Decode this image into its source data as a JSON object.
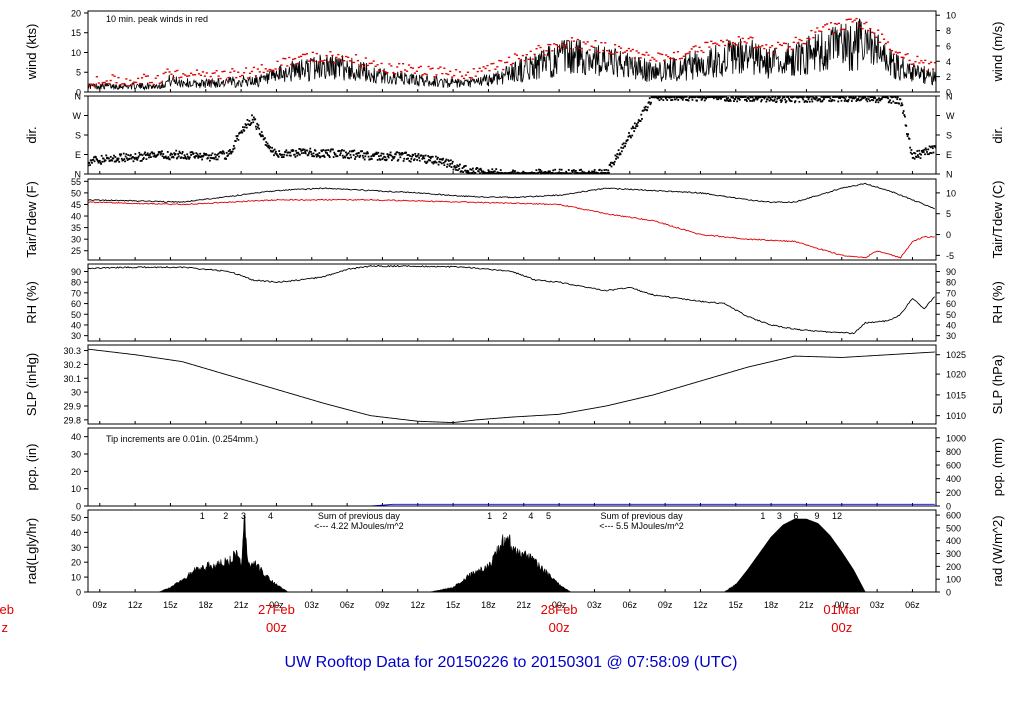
{
  "title": "UW Rooftop Data for 20150226  to  20150301 @ 07:58:09  (UTC)",
  "colors": {
    "axis": "#000000",
    "peak": "#e00000",
    "dew": "#e00000",
    "precip": "#0000ff",
    "annot_blue": "#0000c8",
    "annot_purple": "#9900cc",
    "title": "#0000c8"
  },
  "chart_data": {
    "type": "line",
    "time_axis": {
      "start": "2015-02-26T08:00Z",
      "end": "2015-03-01T08:00Z",
      "hour_ticks": [
        "09z",
        "12z",
        "15z",
        "18z",
        "21z",
        "00z",
        "03z",
        "06z",
        "09z",
        "12z",
        "15z",
        "18z",
        "21z",
        "00z",
        "03z",
        "06z",
        "09z",
        "12z",
        "15z",
        "18z",
        "21z",
        "00z",
        "03z",
        "06z"
      ],
      "day_labels": [
        {
          "date": "27Feb",
          "hour": "00z",
          "time": "2015-02-27T00:00Z"
        },
        {
          "date": "28Feb",
          "hour": "00z",
          "time": "2015-02-28T00:00Z"
        },
        {
          "date": "01Mar",
          "hour": "00z",
          "time": "2015-03-01T00:00Z"
        }
      ],
      "left_cut_date": "eb",
      "left_cut_hour": "z"
    },
    "panels": [
      {
        "id": "wind",
        "ylabel": "wind (kts)",
        "ylabel_right": "wind (m/s)",
        "ylim": [
          0,
          20.5
        ],
        "yticks": [
          0,
          5,
          10,
          15,
          20
        ],
        "right_ticks": [
          {
            "v": 0,
            "label": "0"
          },
          {
            "v": 3.89,
            "label": "2"
          },
          {
            "v": 7.78,
            "label": "4"
          },
          {
            "v": 11.66,
            "label": "6"
          },
          {
            "v": 15.55,
            "label": "8"
          },
          {
            "v": 19.44,
            "label": "10"
          }
        ],
        "annotation": "10 min. peak winds in red",
        "series": [
          {
            "name": "wind",
            "color": "#000000",
            "hours": [
              0,
              3,
              6,
              7,
              9,
              12,
              15,
              17,
              20,
              22,
              24,
              26,
              28,
              30,
              32,
              34,
              36,
              38,
              40,
              42,
              44,
              46,
              48,
              50,
              52,
              54,
              56,
              58,
              60,
              62,
              64,
              66,
              67,
              68,
              70,
              72
            ],
            "values": [
              1.5,
              1.5,
              1.5,
              3,
              2,
              2.5,
              3,
              5,
              6.5,
              6,
              4.5,
              3.5,
              3,
              2.5,
              2,
              3,
              5,
              6.5,
              8.5,
              9,
              7.5,
              6.5,
              5,
              6,
              7,
              8.5,
              9,
              7,
              8.5,
              10,
              11.5,
              12,
              10,
              7.5,
              5,
              3.5
            ]
          },
          {
            "name": "peak",
            "color": "#e00000",
            "hours": [
              0,
              3,
              6,
              7,
              9,
              12,
              15,
              17,
              20,
              22,
              24,
              26,
              28,
              30,
              32,
              34,
              36,
              38,
              40,
              42,
              44,
              46,
              48,
              50,
              52,
              54,
              56,
              58,
              60,
              62,
              64,
              66,
              67,
              68,
              70,
              72
            ],
            "values": [
              3,
              3,
              3,
              5,
              4,
              4.5,
              5.5,
              7.5,
              9,
              8.5,
              7,
              6,
              5.5,
              5,
              4.5,
              5.5,
              8,
              10,
              12,
              12.5,
              11,
              10,
              8.5,
              9.5,
              11,
              12.5,
              13,
              11,
              12.5,
              15,
              17,
              17.5,
              15,
              11,
              8,
              6
            ]
          }
        ]
      },
      {
        "id": "dir",
        "ylabel": "dir.",
        "ylabel_right": "dir.",
        "ylim": [
          0,
          360
        ],
        "yticks_labels": [
          {
            "v": 0,
            "label": "N"
          },
          {
            "v": 90,
            "label": "E"
          },
          {
            "v": 180,
            "label": "S"
          },
          {
            "v": 270,
            "label": "W"
          },
          {
            "v": 360,
            "label": "N"
          }
        ],
        "series": [
          {
            "name": "direction",
            "hours": [
              0,
              3,
              6,
              8,
              10,
              12,
              13,
              14,
              15,
              16,
              18,
              21,
              24,
              27,
              30,
              31,
              32,
              33,
              34,
              36,
              40,
              44,
              48,
              52,
              56,
              60,
              64,
              68,
              69,
              70,
              71,
              72
            ],
            "values": [
              60,
              75,
              85,
              90,
              80,
              90,
              200,
              260,
              150,
              90,
              100,
              95,
              85,
              80,
              60,
              40,
              20,
              10,
              5,
              0,
              2,
              0,
              360,
              358,
              355,
              350,
              355,
              350,
              340,
              80,
              100,
              120
            ]
          }
        ]
      },
      {
        "id": "temp",
        "ylabel": "Tair/Tdew (F)",
        "ylabel_right": "Tair/Tdew (C)",
        "ylim": [
          21,
          56
        ],
        "yticks": [
          25,
          30,
          35,
          40,
          45,
          50,
          55
        ],
        "right_ticks": [
          {
            "v": 23,
            "label": "-5"
          },
          {
            "v": 32,
            "label": "0"
          },
          {
            "v": 41,
            "label": "5"
          },
          {
            "v": 50,
            "label": "10"
          }
        ],
        "series": [
          {
            "name": "Tair",
            "color": "#000000",
            "hours": [
              0,
              4,
              8,
              12,
              16,
              20,
              24,
              28,
              32,
              36,
              40,
              44,
              48,
              52,
              56,
              58,
              60,
              64,
              66,
              68,
              70,
              72
            ],
            "values": [
              47,
              46.5,
              46,
              48.5,
              51,
              52,
              51,
              50,
              48.5,
              48,
              49,
              52,
              51,
              50,
              47,
              46,
              46,
              52,
              54,
              51,
              47,
              43
            ]
          },
          {
            "name": "Tdew",
            "color": "#e00000",
            "hours": [
              0,
              4,
              8,
              12,
              16,
              20,
              24,
              28,
              32,
              36,
              40,
              44,
              48,
              52,
              56,
              60,
              62,
              64,
              66,
              67,
              69,
              70,
              71,
              72
            ],
            "values": [
              46,
              45.5,
              45,
              46,
              47,
              47,
              47,
              46.5,
              46,
              45.5,
              45,
              41,
              38,
              32,
              30,
              29,
              26,
              23,
              22,
              25,
              22,
              29,
              31,
              31
            ]
          }
        ]
      },
      {
        "id": "rh",
        "ylabel": "RH (%)",
        "ylabel_right": "RH (%)",
        "ylim": [
          25,
          97
        ],
        "yticks": [
          30,
          40,
          50,
          60,
          70,
          80,
          90
        ],
        "series": [
          {
            "name": "RH",
            "color": "#000000",
            "hours": [
              0,
              4,
              8,
              12,
              14,
              16,
              18,
              20,
              22,
              24,
              28,
              32,
              36,
              38,
              40,
              44,
              46,
              48,
              52,
              54,
              56,
              58,
              60,
              62,
              64,
              65,
              66,
              68,
              69,
              70,
              71,
              72
            ],
            "values": [
              93,
              94,
              94,
              90,
              82,
              80,
              82,
              85,
              92,
              95,
              95,
              94,
              90,
              82,
              80,
              72,
              75,
              68,
              62,
              60,
              48,
              40,
              36,
              34,
              33,
              32,
              42,
              44,
              50,
              65,
              55,
              68
            ]
          }
        ]
      },
      {
        "id": "slp",
        "ylabel": "SLP (inHg)",
        "ylabel_right": "SLP (hPa)",
        "ylim": [
          29.77,
          30.34
        ],
        "yticks": [
          29.8,
          29.9,
          30.0,
          30.1,
          30.2,
          30.3
        ],
        "right_ticks": [
          {
            "v": 29.83,
            "label": "1010"
          },
          {
            "v": 29.98,
            "label": "1015"
          },
          {
            "v": 30.13,
            "label": "1020"
          },
          {
            "v": 30.27,
            "label": "1025"
          }
        ],
        "series": [
          {
            "name": "SLP",
            "color": "#000000",
            "hours": [
              0,
              4,
              8,
              12,
              16,
              20,
              24,
              28,
              31,
              33,
              36,
              40,
              44,
              48,
              52,
              56,
              60,
              64,
              68,
              72
            ],
            "values": [
              30.31,
              30.27,
              30.22,
              30.12,
              30.02,
              29.92,
              29.83,
              29.79,
              29.78,
              29.8,
              29.82,
              29.84,
              29.9,
              29.98,
              30.08,
              30.18,
              30.26,
              30.25,
              30.27,
              30.29
            ]
          }
        ]
      },
      {
        "id": "pcp",
        "ylabel": "pcp. (in)",
        "ylabel_right": "pcp. (mm)",
        "ylim": [
          0,
          45
        ],
        "yticks": [
          0,
          10,
          20,
          30,
          40
        ],
        "right_ticks": [
          {
            "v": 0,
            "label": "0"
          },
          {
            "v": 7.87,
            "label": "200"
          },
          {
            "v": 15.75,
            "label": "400"
          },
          {
            "v": 23.62,
            "label": "600"
          },
          {
            "v": 31.5,
            "label": "800"
          },
          {
            "v": 39.37,
            "label": "1000"
          }
        ],
        "annotation": "Tip increments are 0.01in. (0.254mm.)",
        "series": [
          {
            "name": "precip",
            "color": "#0000ff",
            "hours": [
              0,
              24,
              26,
              72
            ],
            "values": [
              0,
              0,
              1,
              1
            ]
          }
        ]
      },
      {
        "id": "rad",
        "ylabel": "rad(Lgly/hr)",
        "ylabel_right": "rad (W/m^2)",
        "ylim": [
          0,
          55
        ],
        "yticks": [
          0,
          10,
          20,
          30,
          40,
          50
        ],
        "right_ticks": [
          {
            "v": 0,
            "label": "0"
          },
          {
            "v": 8.6,
            "label": "100"
          },
          {
            "v": 17.2,
            "label": "200"
          },
          {
            "v": 25.8,
            "label": "300"
          },
          {
            "v": 34.4,
            "label": "400"
          },
          {
            "v": 43.0,
            "label": "500"
          },
          {
            "v": 51.6,
            "label": "600"
          }
        ],
        "hour_marks": [
          {
            "label": "1",
            "hour": 9.7
          },
          {
            "label": "2",
            "hour": 11.7
          },
          {
            "label": "3",
            "hour": 13.2
          },
          {
            "label": "4",
            "hour": 15.5
          },
          {
            "label": "1",
            "hour": 34.1
          },
          {
            "label": "2",
            "hour": 35.4
          },
          {
            "label": "4",
            "hour": 37.6
          },
          {
            "label": "5",
            "hour": 39.1
          },
          {
            "label": "1",
            "hour": 57.3
          },
          {
            "label": "3",
            "hour": 58.7
          },
          {
            "label": "6",
            "hour": 60.1
          },
          {
            "label": "9",
            "hour": 61.9
          },
          {
            "label": "12",
            "hour": 63.6
          }
        ],
        "sum_annotations": [
          {
            "line1": "Sum of previous day",
            "line2": "<--- 4.22 MJoules/m^2",
            "hour": 23
          },
          {
            "line1": "Sum of previous day",
            "line2": "<--- 5.5 MJoules/m^2",
            "hour": 47
          }
        ],
        "series": [
          {
            "name": "radiation",
            "color": "#000000",
            "hours": [
              6,
              7,
              8,
              9,
              10,
              11,
              12,
              12.5,
              13,
              13.3,
              13.6,
              14,
              15,
              16,
              17,
              29,
              31,
              32,
              33,
              34,
              34.5,
              35,
              35.5,
              36,
              37,
              38,
              39,
              40,
              41,
              54,
              55,
              56,
              57,
              58,
              59,
              60,
              61,
              62,
              63,
              64,
              65,
              66
            ],
            "values": [
              0,
              3,
              8,
              14,
              17,
              19,
              20,
              26,
              18,
              52,
              18,
              20,
              12,
              5,
              0,
              0,
              3,
              9,
              14,
              18,
              24,
              33,
              38,
              30,
              25,
              20,
              12,
              5,
              0,
              0,
              5,
              15,
              26,
              37,
              45,
              49,
              49,
              46,
              38,
              27,
              15,
              0
            ]
          }
        ]
      }
    ]
  }
}
